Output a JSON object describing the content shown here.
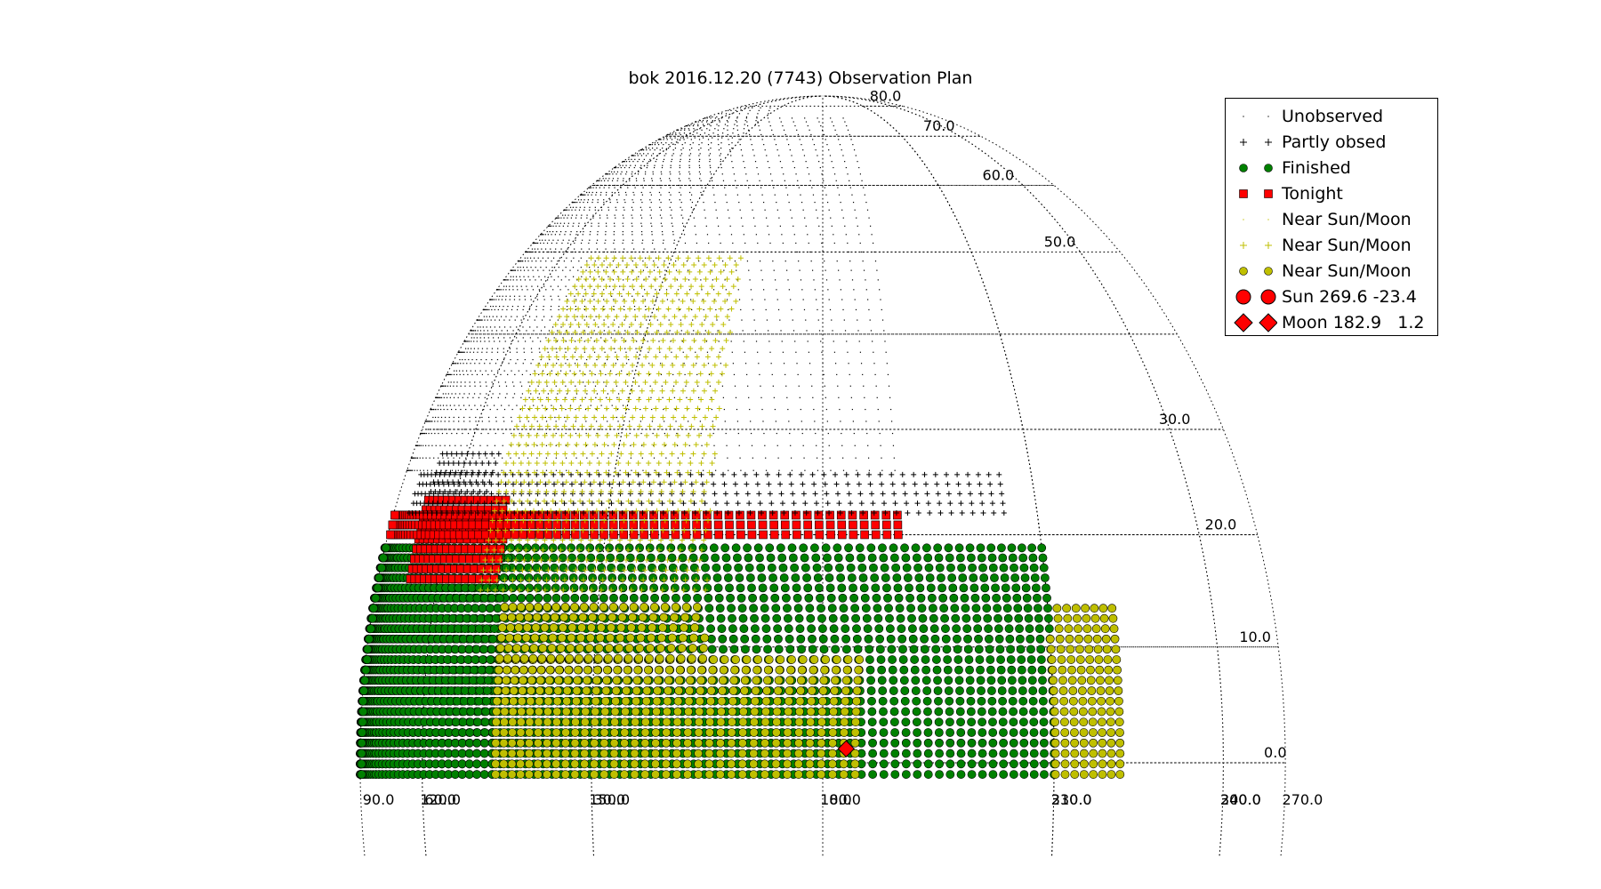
{
  "chart_data": {
    "type": "scatter",
    "projection": "polar sky map (RA along arcs, Dec along radial grid)",
    "title": "bok 2016.12.20 (7743) Observation Plan",
    "ra_tick_labels": [
      "180.0",
      "150.0",
      "120.0",
      "90.0",
      "60.0",
      "30.0",
      "0.0",
      "330.0",
      "300.0",
      "270.0",
      "240.0",
      "210.0"
    ],
    "dec_tick_labels": [
      "0.0",
      "10.0",
      "20.0",
      "30.0",
      "50.0",
      "60.0",
      "70.0",
      "80.0"
    ],
    "ra_range": [
      210,
      180
    ],
    "dec_range": [
      -3,
      90
    ],
    "grid": true,
    "legend_position": "top-right",
    "legend": [
      {
        "label": "Unobserved",
        "marker": "point",
        "color": "#000000"
      },
      {
        "label": "Partly obsed",
        "marker": "plus",
        "color": "#000000"
      },
      {
        "label": "Finished",
        "marker": "circle",
        "color": "#008000"
      },
      {
        "label": "Tonight",
        "marker": "square",
        "color": "#ff0000"
      },
      {
        "label": "Near Sun/Moon",
        "marker": "point",
        "color": "#bfbf00"
      },
      {
        "label": "Near Sun/Moon",
        "marker": "plus",
        "color": "#bfbf00"
      },
      {
        "label": "Near Sun/Moon",
        "marker": "circle",
        "color": "#bfbf00"
      },
      {
        "label": "Sun 269.6 -23.4",
        "marker": "big-circle",
        "color": "#ff0000"
      },
      {
        "label": "Moon 182.9   1.2",
        "marker": "diamond",
        "color": "#ff0000"
      }
    ],
    "sun": {
      "ra": 269.6,
      "dec": -23.4
    },
    "moon": {
      "ra": 182.9,
      "dec": 1.2
    },
    "regions": [
      {
        "status": "finished",
        "ra": [
          -30,
          95
        ],
        "dec": [
          -1,
          19
        ]
      },
      {
        "status": "finished",
        "ra": [
          105,
          135
        ],
        "dec": [
          -1,
          19
        ]
      },
      {
        "status": "near_sun_moon_done",
        "ra": [
          -40,
          -30
        ],
        "dec": [
          -1,
          14
        ]
      },
      {
        "status": "near_sun_moon_done",
        "ra": [
          135,
          185
        ],
        "dec": [
          -1,
          9
        ]
      },
      {
        "status": "near_sun_moon_done",
        "ra": [
          135,
          165
        ],
        "dec": [
          9,
          14
        ]
      },
      {
        "status": "tonight",
        "ra": [
          112,
          133
        ],
        "dec": [
          16,
          24
        ]
      },
      {
        "status": "tonight",
        "ra": [
          -10,
          85
        ],
        "dec": [
          20,
          22
        ]
      },
      {
        "status": "partly",
        "ra": [
          -25,
          75
        ],
        "dec": [
          22,
          26
        ]
      },
      {
        "status": "partly",
        "ra": [
          112,
          128
        ],
        "dec": [
          24,
          28
        ]
      },
      {
        "status": "unobserved",
        "ra": [
          -10,
          100
        ],
        "dec": [
          26,
          76
        ]
      },
      {
        "status": "unobserved",
        "ra": [
          100,
          150
        ],
        "dec": [
          30,
          80
        ]
      },
      {
        "status": "near_sun_moon_pending",
        "ra": [
          130,
          165
        ],
        "dec": [
          15,
          50
        ]
      }
    ]
  }
}
